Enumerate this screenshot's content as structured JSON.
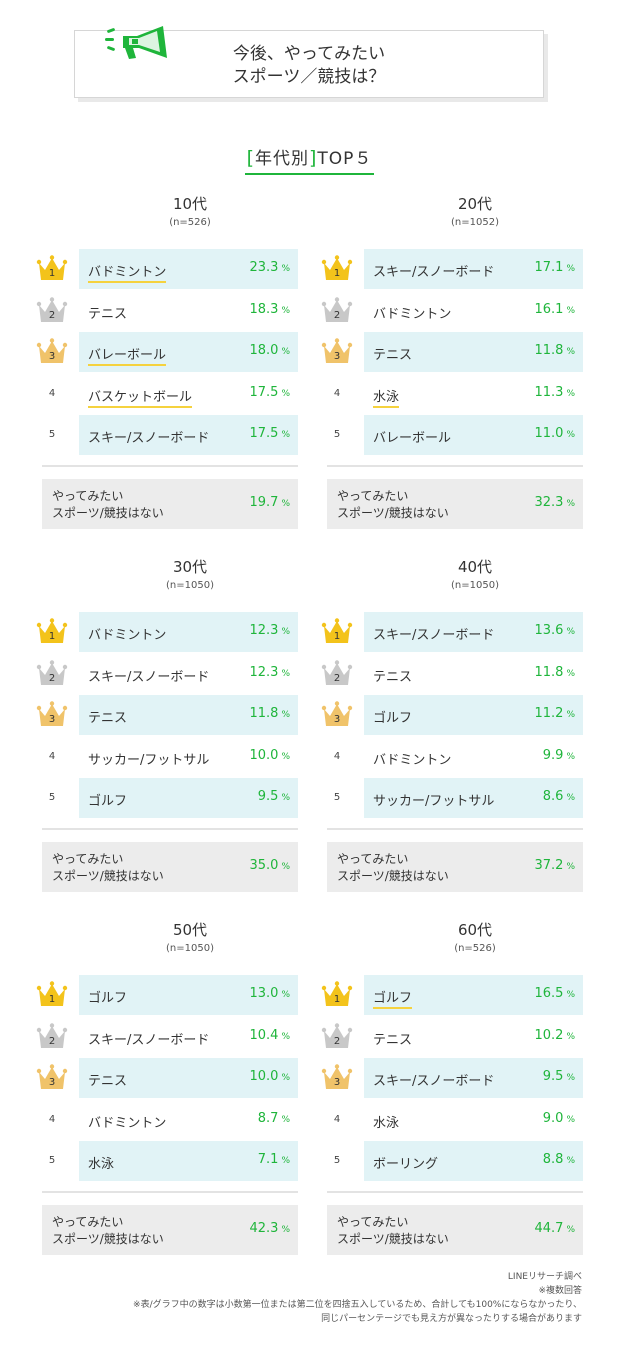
{
  "header": {
    "title_line1": "今後、やってみたい",
    "title_line2": "スポーツ／競技は？"
  },
  "section": {
    "bracket_open": "[",
    "title": "年代別",
    "bracket_close": "]",
    "suffix": "TOP５"
  },
  "colors": {
    "accent": "#1fb53b",
    "row_bg": "#e1f3f6",
    "highlight": "#f5d23e",
    "gold": "#f3c31b",
    "silver": "#c8c8c8",
    "bronze": "#f0c36a"
  },
  "icons": {
    "header": "megaphone-icon",
    "rank1": "gold-crown-icon",
    "rank2": "silver-crown-icon",
    "rank3": "bronze-crown-icon"
  },
  "unit": "%",
  "panels": [
    {
      "age": "10代",
      "n": "(n=526)",
      "rows": [
        {
          "rank": "1",
          "sport": "バドミントン",
          "pct": "23.3"
        },
        {
          "rank": "2",
          "sport": "テニス",
          "pct": "18.3"
        },
        {
          "rank": "3",
          "sport": "バレーボール",
          "pct": "18.0"
        },
        {
          "rank": "4",
          "sport": "バスケットボール",
          "pct": "17.5"
        },
        {
          "rank": "5",
          "sport": "スキー/スノーボード",
          "pct": "17.5"
        }
      ],
      "none_label": "やってみたい\nスポーツ/競技はない",
      "none_pct": "19.7"
    },
    {
      "age": "20代",
      "n": "(n=1052)",
      "rows": [
        {
          "rank": "1",
          "sport": "スキー/スノーボード",
          "pct": "17.1"
        },
        {
          "rank": "2",
          "sport": "バドミントン",
          "pct": "16.1"
        },
        {
          "rank": "3",
          "sport": "テニス",
          "pct": "11.8"
        },
        {
          "rank": "4",
          "sport": "水泳",
          "pct": "11.3"
        },
        {
          "rank": "5",
          "sport": "バレーボール",
          "pct": "11.0"
        }
      ],
      "none_label": "やってみたい\nスポーツ/競技はない",
      "none_pct": "32.3"
    },
    {
      "age": "30代",
      "n": "(n=1050)",
      "rows": [
        {
          "rank": "1",
          "sport": "バドミントン",
          "pct": "12.3"
        },
        {
          "rank": "2",
          "sport": "スキー/スノーボード",
          "pct": "12.3"
        },
        {
          "rank": "3",
          "sport": "テニス",
          "pct": "11.8"
        },
        {
          "rank": "4",
          "sport": "サッカー/フットサル",
          "pct": "10.0"
        },
        {
          "rank": "5",
          "sport": "ゴルフ",
          "pct": "9.5"
        }
      ],
      "none_label": "やってみたい\nスポーツ/競技はない",
      "none_pct": "35.0"
    },
    {
      "age": "40代",
      "n": "(n=1050)",
      "rows": [
        {
          "rank": "1",
          "sport": "スキー/スノーボード",
          "pct": "13.6"
        },
        {
          "rank": "2",
          "sport": "テニス",
          "pct": "11.8"
        },
        {
          "rank": "3",
          "sport": "ゴルフ",
          "pct": "11.2"
        },
        {
          "rank": "4",
          "sport": "バドミントン",
          "pct": "9.9"
        },
        {
          "rank": "5",
          "sport": "サッカー/フットサル",
          "pct": "8.6"
        }
      ],
      "none_label": "やってみたい\nスポーツ/競技はない",
      "none_pct": "37.2"
    },
    {
      "age": "50代",
      "n": "(n=1050)",
      "rows": [
        {
          "rank": "1",
          "sport": "ゴルフ",
          "pct": "13.0"
        },
        {
          "rank": "2",
          "sport": "スキー/スノーボード",
          "pct": "10.4"
        },
        {
          "rank": "3",
          "sport": "テニス",
          "pct": "10.0"
        },
        {
          "rank": "4",
          "sport": "バドミントン",
          "pct": "8.7"
        },
        {
          "rank": "5",
          "sport": "水泳",
          "pct": "7.1"
        }
      ],
      "none_label": "やってみたい\nスポーツ/競技はない",
      "none_pct": "42.3"
    },
    {
      "age": "60代",
      "n": "(n=526)",
      "rows": [
        {
          "rank": "1",
          "sport": "ゴルフ",
          "pct": "16.5"
        },
        {
          "rank": "2",
          "sport": "テニス",
          "pct": "10.2"
        },
        {
          "rank": "3",
          "sport": "スキー/スノーボード",
          "pct": "9.5"
        },
        {
          "rank": "4",
          "sport": "水泳",
          "pct": "9.0"
        },
        {
          "rank": "5",
          "sport": "ボーリング",
          "pct": "8.8"
        }
      ],
      "none_label": "やってみたい\nスポーツ/競技はない",
      "none_pct": "44.7"
    }
  ],
  "footer": {
    "source": "LINEリサーチ調べ",
    "multi": "※複数回答",
    "note1": "※表/グラフ中の数字は小数第一位または第二位を四捨五入しているため、合計しても100%にならなかったり、",
    "note2": "同じパーセンテージでも見え方が異なったりする場合があります"
  }
}
